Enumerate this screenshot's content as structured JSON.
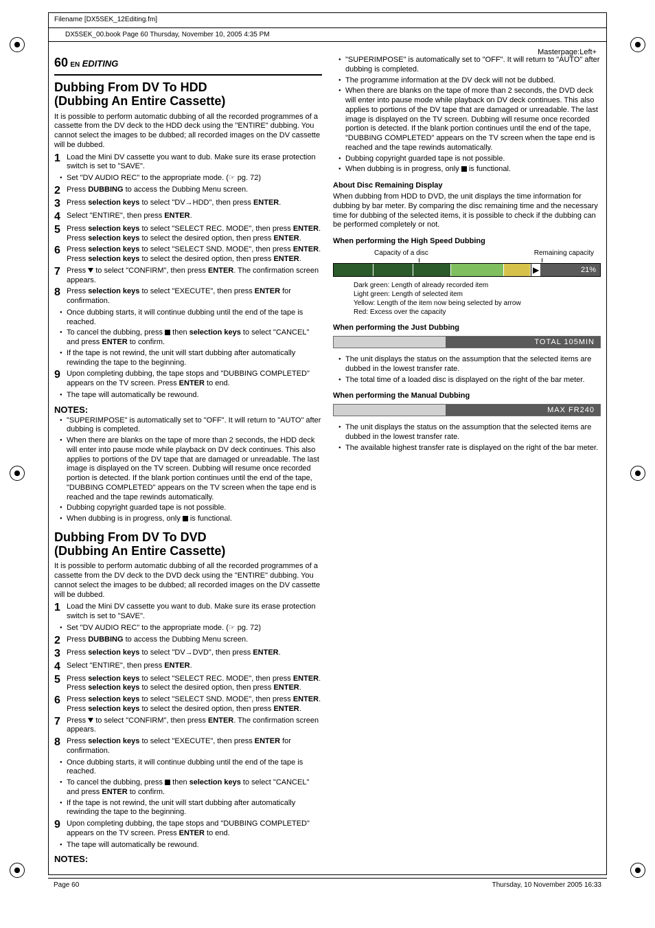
{
  "meta": {
    "filename": "Filename [DX5SEK_12Editing.fm]",
    "bookline": "DX5SEK_00.book  Page 60  Thursday, November 10, 2005  4:35 PM",
    "masterpage": "Masterpage:Left+",
    "footer_left": "Page 60",
    "footer_right": "Thursday, 10 November 2005  16:33"
  },
  "header": {
    "page_number": "60",
    "lang": "EN",
    "section": "EDITING"
  },
  "hdd": {
    "title_line1": "Dubbing From DV To HDD",
    "title_line2": "(Dubbing An Entire Cassette)",
    "intro": "It is possible to perform automatic dubbing of all the recorded programmes of a cassette from the DV deck to the HDD deck using the \"ENTIRE\" dubbing. You cannot select the images to be dubbed; all recorded images on the DV cassette will be dubbed.",
    "steps": [
      "Load the Mini DV cassette you want to dub. Make sure its erase protection switch is set to \"SAVE\".",
      "Press <b>DUBBING</b> to access the Dubbing Menu screen.",
      "Press <b>selection keys</b> to select \"DV→HDD\", then press <b>ENTER</b>.",
      "Select \"ENTIRE\", then press <b>ENTER</b>.",
      "Press <b>selection keys</b> to select \"SELECT REC. MODE\", then press <b>ENTER</b>. Press <b>selection keys</b> to select the desired option, then press <b>ENTER</b>.",
      "Press <b>selection keys</b> to select \"SELECT SND. MODE\", then press <b>ENTER</b>. Press <b>selection keys</b> to select the desired option, then press <b>ENTER</b>.",
      "Press <span class=\"tri-down\"></span> to select \"CONFIRM\", then press <b>ENTER</b>. The confirmation screen appears.",
      "Press <b>selection keys</b> to select \"EXECUTE\", then press <b>ENTER</b> for confirmation.",
      "Upon completing dubbing, the tape stops and \"DUBBING COMPLETED\" appears on the TV screen. Press <b>ENTER</b> to end."
    ],
    "step1_sub": "Set \"DV AUDIO REC\" to the appropriate mode. (☞ pg. 72)",
    "step8_subs": [
      "Once dubbing starts, it will continue dubbing until the end of the tape is reached.",
      "To cancel the dubbing, press <span class=\"stop-sq\"></span> then <b>selection keys</b> to select \"CANCEL\" and press <b>ENTER</b> to confirm.",
      "If the tape is not rewind, the unit will start dubbing after automatically rewinding the tape to the beginning."
    ],
    "step9_sub": "The tape will automatically be rewound.",
    "notes_hdr": "NOTES:",
    "notes": [
      "\"SUPERIMPOSE\" is automatically set to \"OFF\". It will return to \"AUTO\" after dubbing is completed.",
      "When there are blanks on the tape of more than 2 seconds, the HDD deck will enter into pause mode while playback on DV deck continues. This also applies to portions of the DV tape that are damaged or unreadable. The last image is displayed on the TV screen. Dubbing will resume once recorded portion is detected. If the blank portion continues until the end of the tape, \"DUBBING COMPLETED\" appears on the TV screen when the tape end is reached and the tape rewinds automatically.",
      "Dubbing copyright guarded tape is not possible.",
      "When dubbing is in progress, only <span class=\"stop-sq\"></span> is functional."
    ]
  },
  "dvd": {
    "title_line1": "Dubbing From DV To DVD",
    "title_line2": "(Dubbing An Entire Cassette)",
    "intro": "It is possible to perform automatic dubbing of all the recorded programmes of a cassette from the DV deck to the DVD deck using the \"ENTIRE\" dubbing. You cannot select the images to be dubbed; all recorded images on the DV cassette will be dubbed.",
    "steps": [
      "Load the Mini DV cassette you want to dub. Make sure its erase protection switch is set to \"SAVE\".",
      "Press <b>DUBBING</b> to access the Dubbing Menu screen.",
      "Press <b>selection keys</b> to select \"DV→DVD\", then press <b>ENTER</b>.",
      "Select \"ENTIRE\", then press <b>ENTER</b>.",
      "Press <b>selection keys</b> to select \"SELECT REC. MODE\", then press <b>ENTER</b>. Press <b>selection keys</b> to select the desired option, then press <b>ENTER</b>.",
      "Press <b>selection keys</b> to select \"SELECT SND. MODE\", then press <b>ENTER</b>. Press <b>selection keys</b> to select the desired option, then press <b>ENTER</b>.",
      "Press <span class=\"tri-down\"></span> to select \"CONFIRM\", then press <b>ENTER</b>. The confirmation screen appears.",
      "Press <b>selection keys</b> to select \"EXECUTE\", then press <b>ENTER</b> for confirmation.",
      "Upon completing dubbing, the tape stops and \"DUBBING COMPLETED\" appears on the TV screen. Press <b>ENTER</b> to end."
    ],
    "step1_sub": "Set \"DV AUDIO REC\" to the appropriate mode. (☞ pg. 72)",
    "step8_subs": [
      "Once dubbing starts, it will continue dubbing until the end of the tape is reached.",
      "To cancel the dubbing, press <span class=\"stop-sq\"></span> then <b>selection keys</b> to select \"CANCEL\" and press <b>ENTER</b> to confirm.",
      "If the tape is not rewind, the unit will start dubbing after automatically rewinding the tape to the beginning."
    ],
    "step9_sub": "The tape will automatically be rewound.",
    "notes_hdr": "NOTES:",
    "notes": [
      "\"SUPERIMPOSE\" is automatically set to \"OFF\". It will return to \"AUTO\" after dubbing is completed.",
      "The programme information at the DV deck will not be dubbed.",
      "When there are blanks on the tape of more than 2 seconds, the DVD deck will enter into pause mode while playback on DV deck continues. This also applies to portions of the DV tape that are damaged or unreadable. The last image is displayed on the TV screen. Dubbing will resume once recorded portion is detected. If the blank portion continues until the end of the tape, \"DUBBING COMPLETED\" appears on the TV screen when the tape end is reached and the tape rewinds automatically.",
      "Dubbing copyright guarded tape is not possible.",
      "When dubbing is in progress, only <span class=\"stop-sq\"></span> is functional."
    ]
  },
  "disc_remaining": {
    "heading": "About Disc Remaining Display",
    "body": "When dubbing from HDD to DVD, the unit displays the time information for dubbing by bar meter. By comparing the disc remaining time and the necessary time for dubbing of the selected items, it is possible to check if the dubbing can be performed completely or not."
  },
  "highspeed": {
    "heading": "When performing the High Speed Dubbing",
    "label_capacity": "Capacity of a disc",
    "label_remaining": "Remaining capacity",
    "pct": "21%",
    "segments": [
      {
        "width": 15,
        "color": "#2b5a2b"
      },
      {
        "width": 15,
        "color": "#2b5a2b"
      },
      {
        "width": 14,
        "color": "#2b5a2b"
      },
      {
        "width": 20,
        "color": "#7fbf5f"
      },
      {
        "width": 10,
        "color": "#d6c24a"
      }
    ],
    "remaining_bg": "#5a5a5a",
    "legend": [
      "Dark green: Length of already recorded item",
      "Light green: Length of selected item",
      "Yellow: Length of the item now being selected by arrow",
      "Red: Excess over the capacity"
    ]
  },
  "just": {
    "heading": "When performing the Just Dubbing",
    "fill_pct": 42,
    "fill_color": "#d0d0d0",
    "bg_color": "#5a5a5a",
    "right_label": "TOTAL   105MIN",
    "bullets": [
      "The unit displays the status on the assumption that the selected items are dubbed in the lowest transfer rate.",
      "The total time of a loaded disc is displayed on the right of the bar meter."
    ]
  },
  "manual": {
    "heading": "When performing the Manual Dubbing",
    "fill_pct": 42,
    "fill_color": "#d0d0d0",
    "bg_color": "#5a5a5a",
    "right_label": "MAX   FR240",
    "bullets": [
      "The unit displays the status on the assumption that the selected items are dubbed in the lowest transfer rate.",
      "The available highest transfer rate is displayed on the right of the bar meter."
    ]
  },
  "colors": {
    "text": "#000000",
    "bg": "#ffffff"
  }
}
